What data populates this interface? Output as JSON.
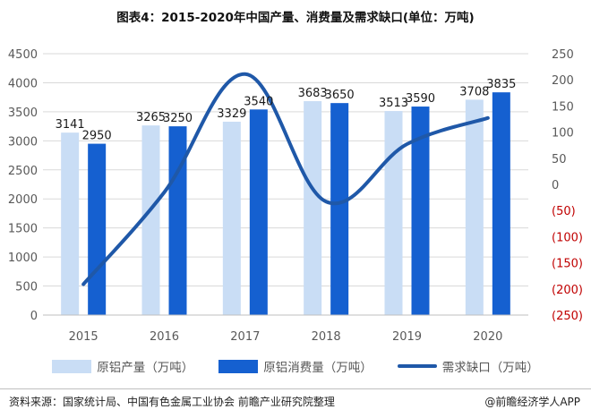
{
  "title": "图表4：2015-2020年中国产量、消费量及需求缺口(单位：万吨)",
  "chart_data": {
    "type": "bar+line",
    "categories": [
      "2015",
      "2016",
      "2017",
      "2018",
      "2019",
      "2020"
    ],
    "series": [
      {
        "name": "原铝产量（万吨）",
        "type": "bar",
        "axis": "left",
        "color": "#c9ddf5",
        "values": [
          3141,
          3265,
          3329,
          3683,
          3513,
          3708
        ]
      },
      {
        "name": "原铝消费量（万吨）",
        "type": "bar",
        "axis": "left",
        "color": "#1560d0",
        "values": [
          2950,
          3250,
          3540,
          3650,
          3590,
          3835
        ]
      },
      {
        "name": "需求缺口（万吨）",
        "type": "line",
        "axis": "right",
        "color": "#1f58a8",
        "values": [
          -191,
          -15,
          211,
          -33,
          77,
          127
        ]
      }
    ],
    "data_labels": {
      "series_0": [
        "3141",
        "3265",
        "3329",
        "3683",
        "3513",
        "3708"
      ],
      "series_1": [
        "2950",
        "3250",
        "3540",
        "3650",
        "3590",
        "3835"
      ]
    },
    "y_left": {
      "range": [
        0,
        4500
      ],
      "ticks": [
        0,
        500,
        1000,
        1500,
        2000,
        2500,
        3000,
        3500,
        4000,
        4500
      ],
      "tick_labels": [
        "0",
        "500",
        "1000",
        "1500",
        "2000",
        "2500",
        "3000",
        "3500",
        "4000",
        "4500"
      ]
    },
    "y_right": {
      "range": [
        -250,
        250
      ],
      "ticks": [
        250,
        200,
        150,
        100,
        50,
        0,
        -50,
        -100,
        -150,
        -200,
        -250
      ],
      "tick_labels": [
        "250",
        "200",
        "150",
        "100",
        "50",
        "0",
        "(50)",
        "(100)",
        "(150)",
        "(200)",
        "(250)"
      ],
      "negative_color": "#c00000"
    },
    "grid": true,
    "legend_position": "bottom"
  },
  "source_text": "资料来源：国家统计局、中国有色金属工业协会 前瞻产业研究院整理",
  "brand_text": "@前瞻经济学人APP"
}
